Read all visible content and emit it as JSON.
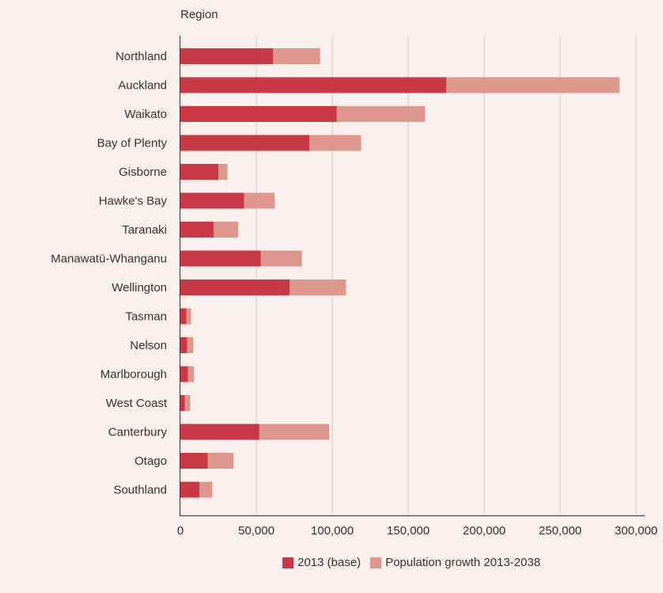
{
  "chart_data": {
    "type": "bar",
    "orientation": "horizontal",
    "stacked": true,
    "ylabel": "Region",
    "categories": [
      "Northland",
      "Auckland",
      "Waikato",
      "Bay of Plenty",
      "Gisborne",
      "Hawke's Bay",
      "Taranaki",
      "Manawatū-Whanganu",
      "Wellington",
      "Tasman",
      "Nelson",
      "Marlborough",
      "West Coast",
      "Canterbury",
      "Otago",
      "Southland"
    ],
    "series": [
      {
        "name": "2013 (base)",
        "color": "#c83845",
        "values": [
          61000,
          175000,
          103000,
          85000,
          25000,
          42000,
          22000,
          53000,
          72000,
          4000,
          4500,
          5000,
          3000,
          52000,
          18000,
          12500
        ]
      },
      {
        "name": "Population growth 2013-2038",
        "color": "#dd978c",
        "values": [
          31000,
          114000,
          58000,
          34000,
          6000,
          20000,
          16000,
          27000,
          37000,
          3000,
          4000,
          4000,
          3500,
          46000,
          17000,
          8500
        ]
      }
    ],
    "xlim": [
      0,
      330000
    ],
    "xticks": [
      0,
      50000,
      100000,
      150000,
      200000,
      250000,
      300000
    ],
    "xtick_labels": [
      "0",
      "50,000",
      "100,000",
      "150,000",
      "200,000",
      "250,000",
      "300,000"
    ],
    "grid": "vertical",
    "legend": "bottom"
  }
}
